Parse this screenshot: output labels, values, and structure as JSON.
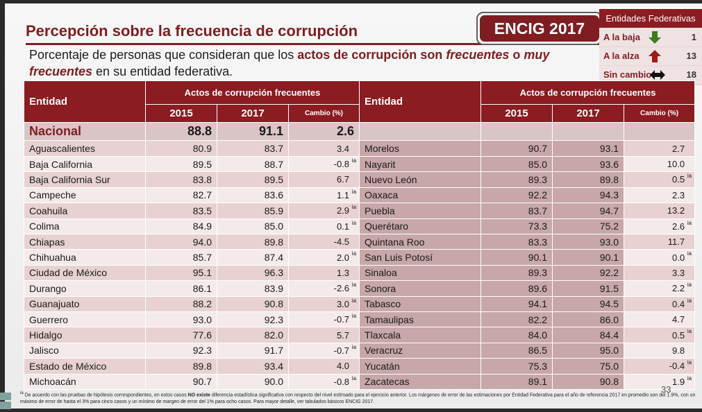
{
  "title": "Percepción sobre la frecuencia de corrupción",
  "badge": "ENCIG 2017",
  "legend": {
    "title": "Entidades Federativas",
    "rows": [
      {
        "label": "A la baja",
        "icon": "down-arrow-icon",
        "color": "#3f7a1e",
        "value": "1"
      },
      {
        "label": "A la alza",
        "icon": "up-arrow-icon",
        "color": "#a01818",
        "value": "13"
      },
      {
        "label": "Sin cambio",
        "icon": "left-right-arrow-icon",
        "color": "#111111",
        "value": "18"
      }
    ]
  },
  "subtitle": {
    "part1": "Porcentaje de personas que consideran que los ",
    "em1": "actos de corrupción son ",
    "em2": "frecuentes",
    "em3": " o ",
    "em4": "muy frecuentes",
    "part2": " en su entidad federativa."
  },
  "table": {
    "entity_header": "Entidad",
    "group_header": "Actos de corrupción frecuentes",
    "year1": "2015",
    "year2": "2017",
    "change_header": "Cambio (%)",
    "national": {
      "name": "Nacional",
      "v2015": "88.8",
      "v2017": "91.1",
      "change": "2.6"
    },
    "rows": [
      {
        "l": {
          "name": "Aguascalientes",
          "a": "80.9",
          "b": "83.7",
          "c": "3.4",
          "ia": ""
        },
        "r": {
          "name": "Morelos",
          "a": "90.7",
          "b": "93.1",
          "c": "2.7",
          "ia": ""
        }
      },
      {
        "l": {
          "name": "Baja California",
          "a": "89.5",
          "b": "88.7",
          "c": "-0.8",
          "ia": "ia"
        },
        "r": {
          "name": "Nayarit",
          "a": "85.0",
          "b": "93.6",
          "c": "10.0",
          "ia": ""
        }
      },
      {
        "l": {
          "name": "Baja California Sur",
          "a": "83.8",
          "b": "89.5",
          "c": "6.7",
          "ia": ""
        },
        "r": {
          "name": "Nuevo León",
          "a": "89.3",
          "b": "89.8",
          "c": "0.5",
          "ia": "ia"
        }
      },
      {
        "l": {
          "name": "Campeche",
          "a": "82.7",
          "b": "83.6",
          "c": "1.1",
          "ia": "ia"
        },
        "r": {
          "name": "Oaxaca",
          "a": "92.2",
          "b": "94.3",
          "c": "2.3",
          "ia": ""
        }
      },
      {
        "l": {
          "name": "Coahuila",
          "a": "83.5",
          "b": "85.9",
          "c": "2.9",
          "ia": "ia"
        },
        "r": {
          "name": "Puebla",
          "a": "83.7",
          "b": "94.7",
          "c": "13.2",
          "ia": ""
        }
      },
      {
        "l": {
          "name": "Colima",
          "a": "84.9",
          "b": "85.0",
          "c": "0.1",
          "ia": "ia"
        },
        "r": {
          "name": "Querétaro",
          "a": "73.3",
          "b": "75.2",
          "c": "2.6",
          "ia": "ia"
        }
      },
      {
        "l": {
          "name": "Chiapas",
          "a": "94.0",
          "b": "89.8",
          "c": "-4.5",
          "ia": ""
        },
        "r": {
          "name": "Quintana Roo",
          "a": "83.3",
          "b": "93.0",
          "c": "11.7",
          "ia": ""
        }
      },
      {
        "l": {
          "name": "Chihuahua",
          "a": "85.7",
          "b": "87.4",
          "c": "2.0",
          "ia": "ia"
        },
        "r": {
          "name": "San Luis Potosí",
          "a": "90.1",
          "b": "90.1",
          "c": "0.0",
          "ia": "ia"
        }
      },
      {
        "l": {
          "name": "Ciudad de México",
          "a": "95.1",
          "b": "96.3",
          "c": "1.3",
          "ia": ""
        },
        "r": {
          "name": "Sinaloa",
          "a": "89.3",
          "b": "92.2",
          "c": "3.3",
          "ia": ""
        }
      },
      {
        "l": {
          "name": "Durango",
          "a": "86.1",
          "b": "83.9",
          "c": "-2.6",
          "ia": "ia"
        },
        "r": {
          "name": "Sonora",
          "a": "89.6",
          "b": "91.5",
          "c": "2.2",
          "ia": "ia"
        }
      },
      {
        "l": {
          "name": "Guanajuato",
          "a": "88.2",
          "b": "90.8",
          "c": "3.0",
          "ia": "ia"
        },
        "r": {
          "name": "Tabasco",
          "a": "94.1",
          "b": "94.5",
          "c": "0.4",
          "ia": "ia"
        }
      },
      {
        "l": {
          "name": "Guerrero",
          "a": "93.0",
          "b": "92.3",
          "c": "-0.7",
          "ia": "ia"
        },
        "r": {
          "name": "Tamaulipas",
          "a": "82.2",
          "b": "86.0",
          "c": "4.7",
          "ia": ""
        }
      },
      {
        "l": {
          "name": "Hidalgo",
          "a": "77.6",
          "b": "82.0",
          "c": "5.7",
          "ia": ""
        },
        "r": {
          "name": "Tlaxcala",
          "a": "84.0",
          "b": "84.4",
          "c": "0.5",
          "ia": "ia"
        }
      },
      {
        "l": {
          "name": "Jalisco",
          "a": "92.3",
          "b": "91.7",
          "c": "-0.7",
          "ia": "ia"
        },
        "r": {
          "name": "Veracruz",
          "a": "86.5",
          "b": "95.0",
          "c": "9.8",
          "ia": ""
        }
      },
      {
        "l": {
          "name": "Estado de México",
          "a": "89.8",
          "b": "93.4",
          "c": "4.0",
          "ia": ""
        },
        "r": {
          "name": "Yucatán",
          "a": "75.3",
          "b": "75.0",
          "c": "-0.4",
          "ia": "ia"
        }
      },
      {
        "l": {
          "name": "Michoacán",
          "a": "90.7",
          "b": "90.0",
          "c": "-0.8",
          "ia": "ia"
        },
        "r": {
          "name": "Zacatecas",
          "a": "89.1",
          "b": "90.8",
          "c": "1.9",
          "ia": "ia"
        }
      }
    ]
  },
  "footnote": {
    "marker": "ia",
    "part1": "De acuerdo con las pruebas de hipótesis correspondientes, en estos casos ",
    "bold": "NO existe",
    "part2": " diferencia estadística significativa con respecto del nivel estimado para el ejercicio anterior. Los márgenes de error de las estimaciones por Entidad Federativa para el año de referencia 2017 en promedio son del 1.9%, con un máximo de error de hasta el 3% para cinco casos y un mínimo de margen de error del 1% para ocho casos. Para mayor detalle, ver tabulados básicos ENCIG 2017."
  },
  "page_number": "33"
}
